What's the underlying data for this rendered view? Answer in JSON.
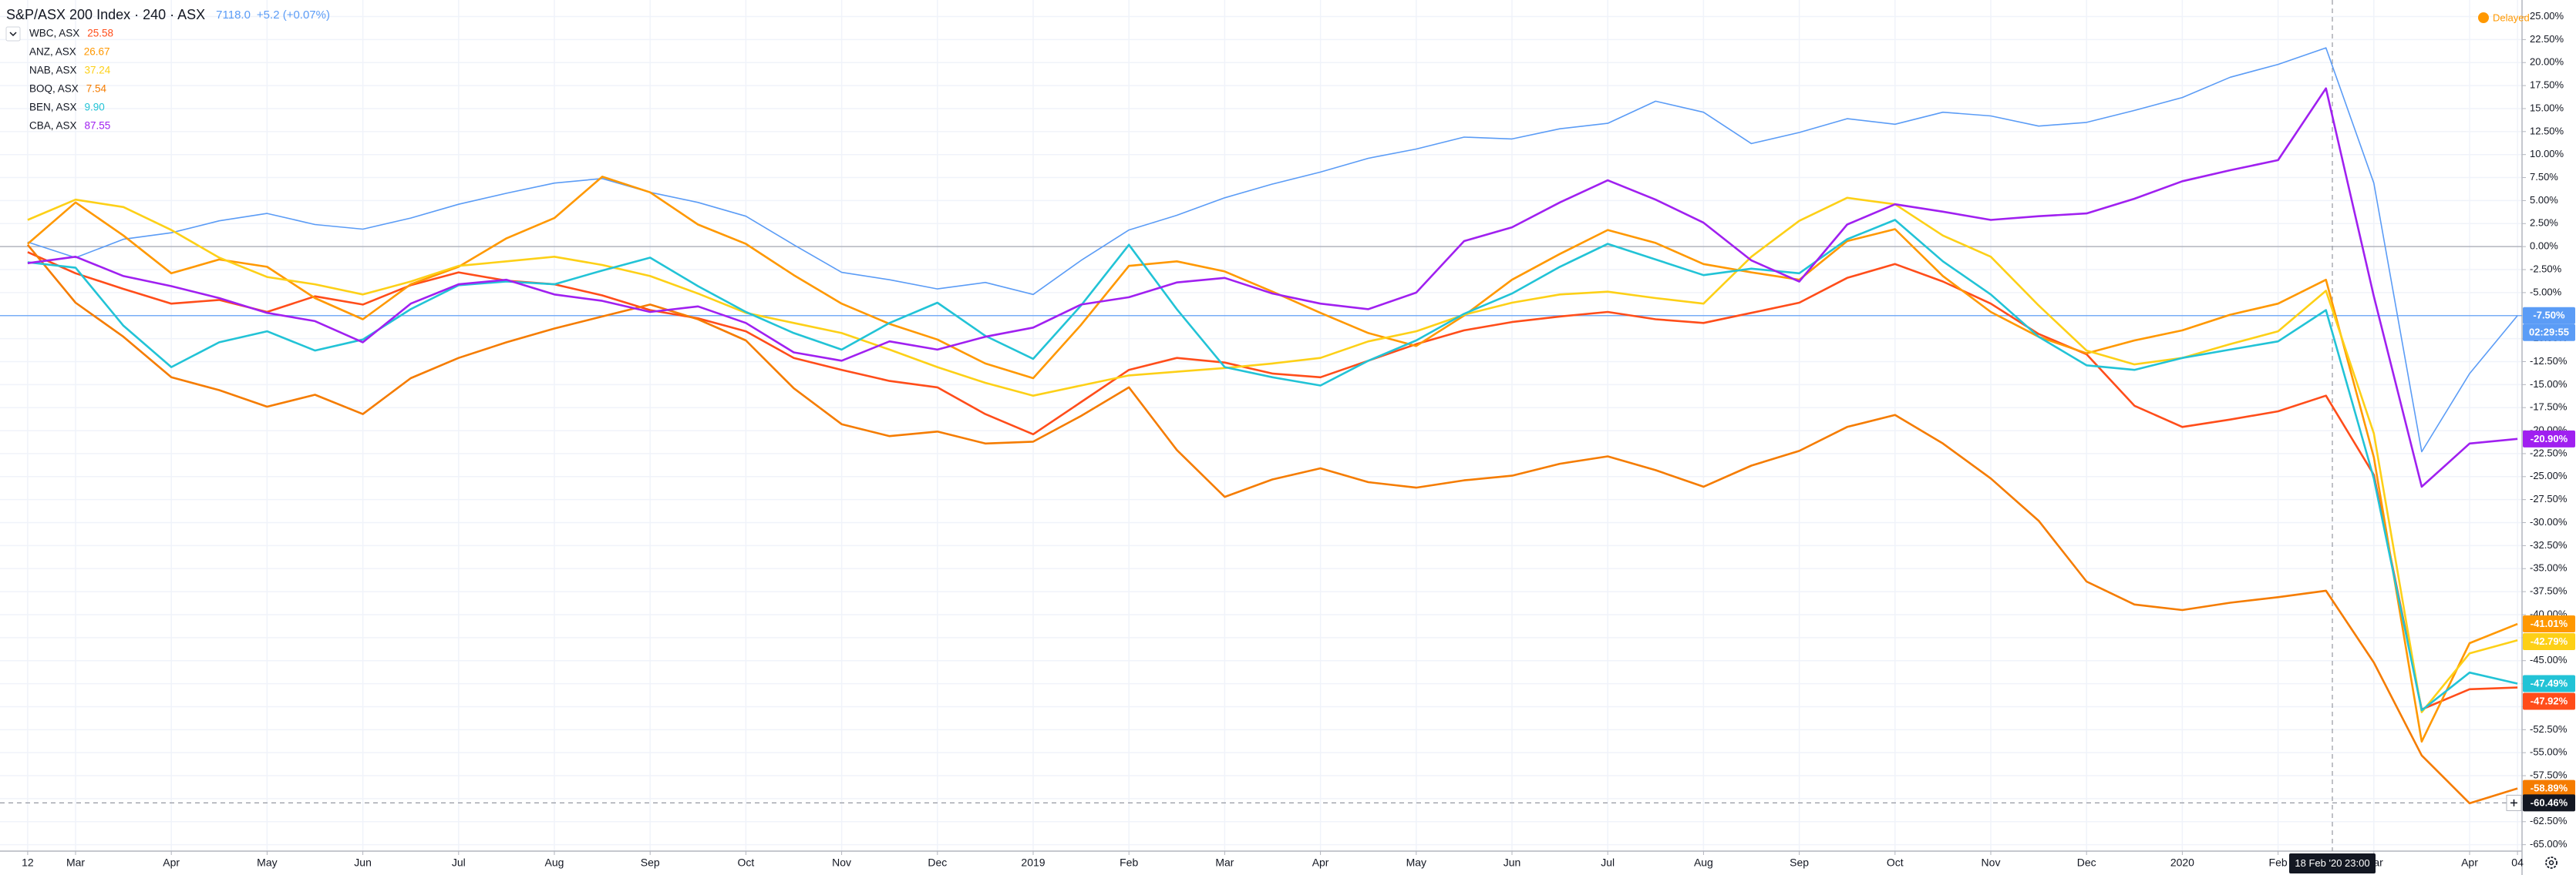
{
  "chart_data": {
    "type": "line",
    "status": "Delayed",
    "categories": [
      "12",
      "Mar",
      null,
      "Apr",
      null,
      "May",
      null,
      "Jun",
      null,
      "Jul",
      null,
      "Aug",
      null,
      "Sep",
      null,
      "Oct",
      null,
      "Nov",
      null,
      "Dec",
      null,
      "2019",
      null,
      "Feb",
      null,
      "Mar",
      null,
      "Apr",
      null,
      "May",
      null,
      "Jun",
      null,
      "Jul",
      null,
      "Aug",
      null,
      "Sep",
      null,
      "Oct",
      null,
      "Nov",
      null,
      "Dec",
      null,
      "2020",
      null,
      "Feb",
      null,
      "Mar",
      null,
      "Apr",
      "04"
    ],
    "ylim": [
      -65.7,
      26.8
    ],
    "yticks": [
      {
        "value": 25,
        "label": "25.00%"
      },
      {
        "value": 22.5,
        "label": "22.50%"
      },
      {
        "value": 20,
        "label": "20.00%"
      },
      {
        "value": 17.5,
        "label": "17.50%"
      },
      {
        "value": 15,
        "label": "15.00%"
      },
      {
        "value": 12.5,
        "label": "12.50%"
      },
      {
        "value": 10,
        "label": "10.00%"
      },
      {
        "value": 7.5,
        "label": "7.50%"
      },
      {
        "value": 5,
        "label": "5.00%"
      },
      {
        "value": 2.5,
        "label": "2.50%"
      },
      {
        "value": 0,
        "label": "0.00%"
      },
      {
        "value": -2.5,
        "label": "-2.50%"
      },
      {
        "value": -5,
        "label": "-5.00%"
      },
      {
        "value": -7.5,
        "label": "-7.50%"
      },
      {
        "value": -10,
        "label": "-10.00%"
      },
      {
        "value": -12.5,
        "label": "-12.50%"
      },
      {
        "value": -15,
        "label": "-15.00%"
      },
      {
        "value": -17.5,
        "label": "-17.50%"
      },
      {
        "value": -20,
        "label": "-20.00%"
      },
      {
        "value": -22.5,
        "label": "-22.50%"
      },
      {
        "value": -25,
        "label": "-25.00%"
      },
      {
        "value": -27.5,
        "label": "-27.50%"
      },
      {
        "value": -30,
        "label": "-30.00%"
      },
      {
        "value": -32.5,
        "label": "-32.50%"
      },
      {
        "value": -35,
        "label": "-35.00%"
      },
      {
        "value": -37.5,
        "label": "-37.50%"
      },
      {
        "value": -40,
        "label": "-40.00%"
      },
      {
        "value": -42.5,
        "label": "-42.50%"
      },
      {
        "value": -45,
        "label": "-45.00%"
      },
      {
        "value": -47.5,
        "label": "-47.50%"
      },
      {
        "value": -50,
        "label": "-50.00%"
      },
      {
        "value": -52.5,
        "label": "-52.50%"
      },
      {
        "value": -55,
        "label": "-55.00%"
      },
      {
        "value": -57.5,
        "label": "-57.50%"
      },
      {
        "value": -60,
        "label": "-60.00%"
      },
      {
        "value": -62.5,
        "label": "-62.50%"
      },
      {
        "value": -65,
        "label": "-65.00%"
      }
    ],
    "grid": true,
    "crosshair": {
      "x_label": "18 Feb '20 23:00",
      "y": -60.46,
      "y_label": "-60.46%"
    },
    "series": [
      {
        "name": "S&P/ASX 200 Index · 240 · ASX",
        "price": "7118.0",
        "change": "+5.2 (+0.07%)",
        "color": "#5b9cf6",
        "last_label": "-7.50%",
        "countdown": "02:29:55",
        "values": [
          0.5,
          -1.2,
          0.8,
          1.5,
          2.8,
          3.6,
          2.4,
          1.9,
          3.1,
          4.6,
          5.8,
          6.9,
          7.4,
          5.9,
          4.8,
          3.3,
          0.2,
          -2.8,
          -3.6,
          -4.6,
          -3.9,
          -5.2,
          -1.5,
          1.8,
          3.4,
          5.3,
          6.8,
          8.1,
          9.6,
          10.6,
          11.9,
          11.7,
          12.8,
          13.4,
          15.8,
          14.6,
          11.2,
          12.4,
          13.9,
          13.3,
          14.6,
          14.2,
          13.1,
          13.5,
          14.8,
          16.2,
          18.4,
          19.8,
          21.6,
          6.9,
          -22.3,
          -13.8,
          -7.5
        ]
      },
      {
        "name": "WBC, ASX",
        "price": "25.58",
        "color": "#ff4d1a",
        "last_label": "-47.92%",
        "values": [
          -0.6,
          -2.9,
          -4.6,
          -6.2,
          -5.8,
          -7.1,
          -5.4,
          -6.3,
          -4.2,
          -2.8,
          -3.7,
          -4.1,
          -5.3,
          -6.9,
          -7.8,
          -9.2,
          -12.1,
          -13.4,
          -14.6,
          -15.3,
          -18.2,
          -20.4,
          -16.9,
          -13.4,
          -12.1,
          -12.6,
          -13.8,
          -14.2,
          -12.4,
          -10.6,
          -9.1,
          -8.2,
          -7.6,
          -7.1,
          -7.9,
          -8.3,
          -7.2,
          -6.1,
          -3.4,
          -1.9,
          -3.8,
          -6.2,
          -9.5,
          -11.7,
          -17.3,
          -19.6,
          -18.8,
          -17.9,
          -16.2,
          -24.8,
          -50.3,
          -48.1,
          -47.92
        ]
      },
      {
        "name": "ANZ, ASX",
        "price": "26.67",
        "color": "#ff9800",
        "last_label": "-41.01%",
        "values": [
          0.3,
          4.8,
          1.2,
          -2.9,
          -1.4,
          -2.2,
          -5.6,
          -7.9,
          -4.1,
          -2.2,
          0.9,
          3.1,
          7.6,
          5.9,
          2.4,
          0.3,
          -3.1,
          -6.2,
          -8.4,
          -10.1,
          -12.7,
          -14.3,
          -8.5,
          -2.1,
          -1.6,
          -2.7,
          -4.9,
          -7.2,
          -9.4,
          -10.8,
          -7.5,
          -3.6,
          -0.8,
          1.8,
          0.4,
          -1.9,
          -2.8,
          -3.6,
          0.6,
          1.9,
          -3.2,
          -7.1,
          -9.8,
          -11.6,
          -10.2,
          -9.1,
          -7.4,
          -6.2,
          -3.6,
          -22.9,
          -53.8,
          -43.1,
          -41.01
        ]
      },
      {
        "name": "NAB, ASX",
        "price": "37.24",
        "color": "#fdd017",
        "last_label": "-42.79%",
        "values": [
          2.9,
          5.1,
          4.3,
          1.8,
          -1.2,
          -3.3,
          -4.1,
          -5.2,
          -3.8,
          -2.1,
          -1.6,
          -1.1,
          -2.0,
          -3.2,
          -5.1,
          -7.2,
          -8.3,
          -9.4,
          -11.2,
          -13.1,
          -14.8,
          -16.2,
          -15.1,
          -14.0,
          -13.6,
          -13.2,
          -12.7,
          -12.1,
          -10.3,
          -9.2,
          -7.4,
          -6.1,
          -5.2,
          -4.9,
          -5.6,
          -6.2,
          -1.1,
          2.8,
          5.3,
          4.6,
          1.2,
          -1.1,
          -6.4,
          -11.3,
          -12.8,
          -12.1,
          -10.6,
          -9.2,
          -4.8,
          -20.3,
          -50.6,
          -44.2,
          -42.79
        ]
      },
      {
        "name": "BOQ, ASX",
        "price": "7.54",
        "color": "#f57c00",
        "last_label": "-58.89%",
        "values": [
          0.2,
          -6.1,
          -9.8,
          -14.2,
          -15.6,
          -17.4,
          -16.1,
          -18.2,
          -14.3,
          -12.1,
          -10.4,
          -8.9,
          -7.6,
          -6.3,
          -7.9,
          -10.2,
          -15.4,
          -19.3,
          -20.6,
          -20.1,
          -21.4,
          -21.2,
          -18.4,
          -15.3,
          -22.1,
          -27.2,
          -25.3,
          -24.1,
          -25.6,
          -26.2,
          -25.4,
          -24.9,
          -23.6,
          -22.8,
          -24.3,
          -26.1,
          -23.8,
          -22.2,
          -19.6,
          -18.3,
          -21.4,
          -25.2,
          -29.8,
          -36.4,
          -38.9,
          -39.5,
          -38.7,
          -38.1,
          -37.4,
          -45.2,
          -55.3,
          -60.5,
          -58.89
        ]
      },
      {
        "name": "BEN, ASX",
        "price": "9.90",
        "color": "#22c3d6",
        "last_label": "-47.49%",
        "values": [
          -1.7,
          -2.3,
          -8.6,
          -13.1,
          -10.4,
          -9.2,
          -11.3,
          -10.1,
          -6.8,
          -4.2,
          -3.8,
          -4.1,
          -2.6,
          -1.2,
          -4.3,
          -7.1,
          -9.4,
          -11.2,
          -8.3,
          -6.1,
          -9.7,
          -12.2,
          -6.4,
          0.2,
          -6.8,
          -13.1,
          -14.2,
          -15.1,
          -12.4,
          -10.2,
          -7.3,
          -5.1,
          -2.2,
          0.3,
          -1.4,
          -3.1,
          -2.4,
          -2.9,
          0.8,
          2.9,
          -1.6,
          -5.2,
          -9.8,
          -12.9,
          -13.4,
          -12.1,
          -11.2,
          -10.3,
          -6.9,
          -25.2,
          -50.4,
          -46.3,
          -47.49
        ]
      },
      {
        "name": "CBA, ASX",
        "price": "87.55",
        "color": "#a020f0",
        "last_label": "-20.90%",
        "values": [
          -1.8,
          -1.1,
          -3.2,
          -4.3,
          -5.6,
          -7.2,
          -8.1,
          -10.4,
          -6.2,
          -4.1,
          -3.6,
          -5.2,
          -5.9,
          -7.1,
          -6.5,
          -8.3,
          -11.5,
          -12.4,
          -10.3,
          -11.2,
          -9.8,
          -8.8,
          -6.3,
          -5.5,
          -3.9,
          -3.4,
          -5.1,
          -6.2,
          -6.8,
          -5.0,
          0.6,
          2.1,
          4.8,
          7.2,
          5.1,
          2.6,
          -1.5,
          -3.8,
          2.4,
          4.6,
          3.8,
          2.9,
          3.3,
          3.6,
          5.2,
          7.1,
          8.3,
          9.4,
          17.2,
          -5.4,
          -26.1,
          -21.4,
          -20.9
        ]
      }
    ]
  }
}
